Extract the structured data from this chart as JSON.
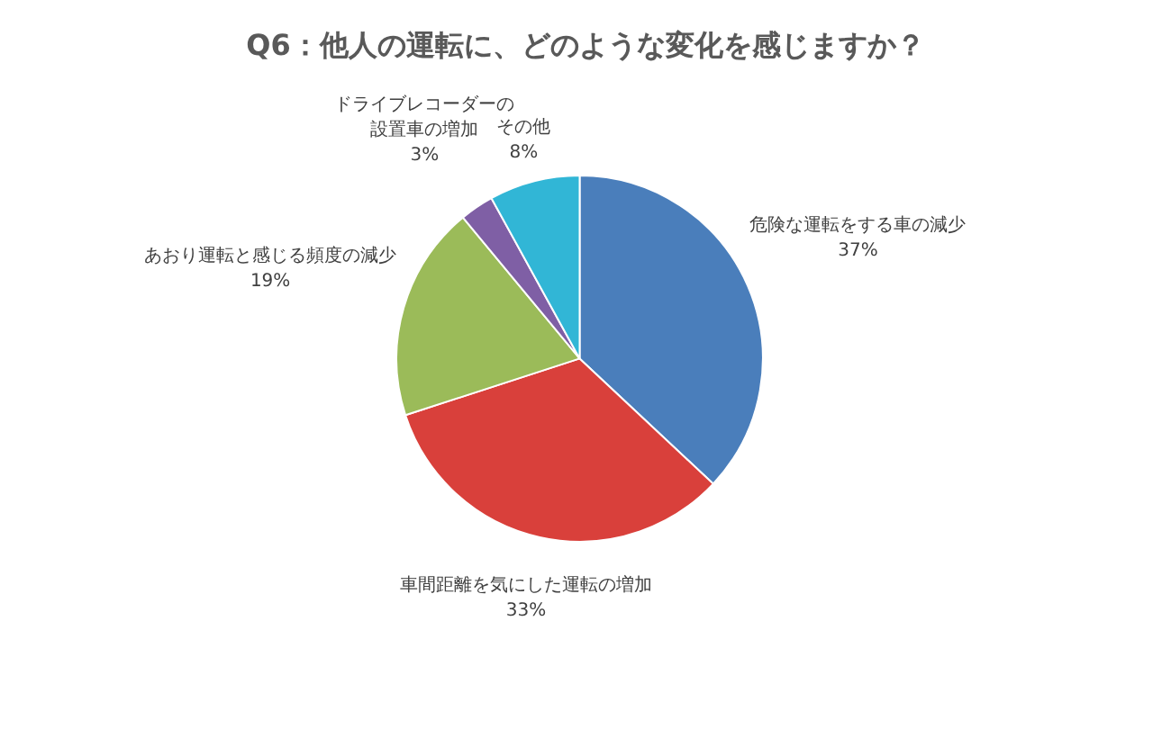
{
  "chart_data": {
    "type": "pie",
    "title": "Q6：他人の運転に、どのような変化を感じますか？",
    "categories": [
      "危険な運転をする車の減少",
      "車間距離を気にした運転の増加",
      "あおり運転と感じる頻度の減少",
      "ドライブレコーダーの設置車の増加",
      "その他"
    ],
    "values": [
      37,
      33,
      19,
      3,
      8
    ],
    "value_labels": [
      "37%",
      "33%",
      "19%",
      "3%",
      "8%"
    ],
    "colors": [
      "#4a7ebb",
      "#d9403b",
      "#9bbb59",
      "#7f5fa5",
      "#31b6d6"
    ],
    "legend": false
  }
}
